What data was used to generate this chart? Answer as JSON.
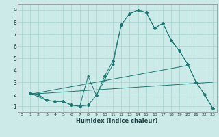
{
  "xlabel": "Humidex (Indice chaleur)",
  "bg_color": "#cceae8",
  "grid_color": "#aad4d2",
  "line_color": "#1a7870",
  "xlim": [
    -0.5,
    23.5
  ],
  "ylim": [
    0.5,
    9.5
  ],
  "xticks": [
    0,
    1,
    2,
    3,
    4,
    5,
    6,
    7,
    8,
    9,
    10,
    11,
    12,
    13,
    14,
    15,
    16,
    17,
    18,
    19,
    20,
    21,
    22,
    23
  ],
  "yticks": [
    1,
    2,
    3,
    4,
    5,
    6,
    7,
    8,
    9
  ],
  "series_diamond": {
    "x": [
      1,
      2,
      3,
      4,
      5,
      6,
      7,
      8,
      9,
      10,
      11,
      12,
      13,
      14,
      15,
      16,
      17,
      18,
      19,
      20,
      21,
      22,
      23
    ],
    "y": [
      2.1,
      2.0,
      1.5,
      1.4,
      1.4,
      1.1,
      1.0,
      1.1,
      1.9,
      3.5,
      4.8,
      7.8,
      8.7,
      9.0,
      8.8,
      7.5,
      7.9,
      6.5,
      5.6,
      4.5,
      3.0,
      2.0,
      0.85
    ]
  },
  "series_plus": {
    "x": [
      1,
      3,
      4,
      5,
      6,
      7,
      8,
      9,
      10,
      11,
      12,
      13,
      14,
      15,
      16,
      17,
      18,
      19,
      20,
      21,
      22,
      23
    ],
    "y": [
      2.1,
      1.5,
      1.4,
      1.4,
      1.1,
      1.0,
      3.5,
      1.9,
      3.2,
      4.5,
      7.8,
      8.7,
      9.0,
      8.8,
      7.5,
      7.9,
      6.5,
      5.6,
      4.5,
      3.0,
      2.0,
      0.85
    ]
  },
  "trend1": {
    "x": [
      1,
      20
    ],
    "y": [
      2.0,
      4.4
    ]
  },
  "trend2": {
    "x": [
      1,
      23
    ],
    "y": [
      2.0,
      3.0
    ]
  }
}
